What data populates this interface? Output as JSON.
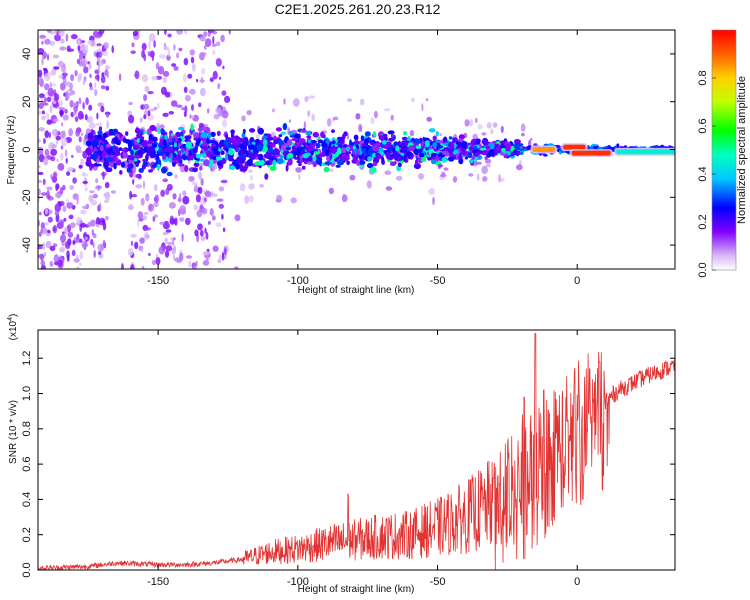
{
  "title": "C2E1.2025.261.20.23.R12",
  "colors": {
    "snr_line": "#e23333",
    "axis": "#000000",
    "spectrum_low": "#e6d4f5",
    "spectrum_mid": "#6a00e0",
    "spectrum_high": "#e22020"
  },
  "chart_data": [
    {
      "type": "heatmap",
      "xlabel": "Height of straight line (km)",
      "ylabel": "Frequency (Hz)",
      "xlim": [
        -193,
        35
      ],
      "ylim": [
        -50,
        50
      ],
      "xticks": [
        -150,
        -100,
        -50,
        0
      ],
      "yticks": [
        -40,
        -20,
        0,
        20,
        40
      ],
      "grid": false,
      "colorbar": {
        "label": "Normalized spectral amplitude",
        "range": [
          0,
          1
        ],
        "ticks": [
          "0.0",
          "0.2",
          "0.4",
          "0.6",
          "0.8"
        ],
        "colormap": [
          "#ffffff",
          "#8000ff",
          "#0000ff",
          "#00ffff",
          "#00ff00",
          "#ffff00",
          "#ff8000",
          "#ff0000"
        ]
      },
      "band": {
        "center_hz": 0,
        "half_width_hz": [
          {
            "x": -170,
            "hz": 12
          },
          {
            "x": -100,
            "hz": 10
          },
          {
            "x": -50,
            "hz": 8
          },
          {
            "x": -20,
            "hz": 4
          },
          {
            "x": 0,
            "hz": 2
          },
          {
            "x": 35,
            "hz": 2
          }
        ],
        "tone_segments": [
          {
            "x_start": -16,
            "x_end": -8,
            "freq_hz": 0,
            "level": 0.85
          },
          {
            "x_start": -5,
            "x_end": 3,
            "freq_hz": 1,
            "level": 0.95
          },
          {
            "x_start": -2,
            "x_end": 12,
            "freq_hz": -1.5,
            "level": 0.95
          },
          {
            "x_start": 14,
            "x_end": 35,
            "freq_hz": -1,
            "level": 0.45
          }
        ]
      }
    },
    {
      "type": "line",
      "xlabel": "Height of straight line (km)",
      "ylabel": "SNR (10 * v/v)",
      "exponent_label": "(x10^4)",
      "xlim": [
        -193,
        35
      ],
      "ylim": [
        0,
        1.36
      ],
      "xticks": [
        -150,
        -100,
        -50,
        0
      ],
      "yticks": [
        "0.0",
        "0.2",
        "0.4",
        "0.6",
        "0.8",
        "1.0",
        "1.2"
      ],
      "grid": false,
      "series": [
        {
          "x": [
            -193,
            -175,
            -165,
            -150,
            -140,
            -130,
            -120,
            -110,
            -100,
            -90,
            -80,
            -70,
            -60,
            -50,
            -40,
            -30,
            -25,
            -20,
            -15,
            -10,
            -5,
            0,
            5,
            10,
            15,
            20,
            25,
            30,
            35
          ],
          "y": [
            0.01,
            0.02,
            0.04,
            0.03,
            0.03,
            0.04,
            0.06,
            0.1,
            0.12,
            0.15,
            0.17,
            0.19,
            0.2,
            0.24,
            0.3,
            0.38,
            0.45,
            0.53,
            0.62,
            0.68,
            0.76,
            0.84,
            0.9,
            0.96,
            1.02,
            1.06,
            1.1,
            1.13,
            1.16
          ]
        }
      ],
      "spikes": [
        {
          "x": -82,
          "y": 0.43
        },
        {
          "x": -30,
          "y": 0.52
        },
        {
          "x": -19,
          "y": 0.98
        },
        {
          "x": -15,
          "y": 1.34
        },
        {
          "x": -12,
          "y": 1.02
        },
        {
          "x": 8,
          "y": 1.18
        },
        {
          "x": 2,
          "y": 0.4
        }
      ]
    }
  ]
}
